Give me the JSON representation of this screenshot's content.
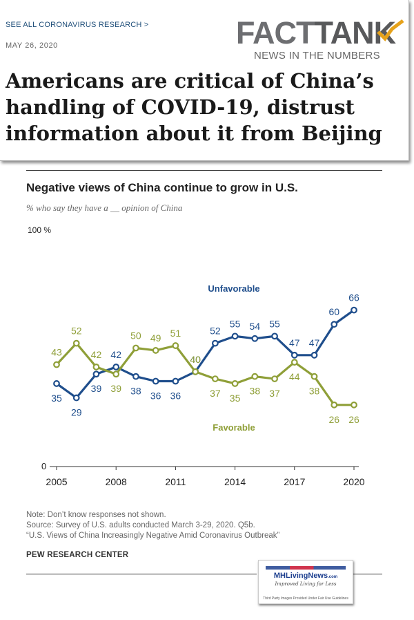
{
  "header": {
    "see_all_link": "SEE ALL CORONAVIRUS RESEARCH >",
    "date": "MAY 26, 2020",
    "logo_word_fact": "FACT",
    "logo_word_tank": "TANK",
    "logo_tagline": "NEWS IN THE NUMBERS",
    "logo_icon": "trend-up-icon",
    "headline": "Americans are critical of China’s handling of COVID-19, distrust information about it from Beijing"
  },
  "chart_data": {
    "type": "line",
    "title": "Negative views of China continue to grow in U.S.",
    "subtitle": "% who say they have a __ opinion of China",
    "y_top_label": "100 %",
    "y_bottom_label": "0",
    "ylim": [
      0,
      100
    ],
    "x": [
      2005,
      2006,
      2007,
      2008,
      2009,
      2010,
      2011,
      2012,
      2013,
      2014,
      2015,
      2016,
      2017,
      2018,
      2019,
      2020
    ],
    "x_tick_labels": [
      "2005",
      "2008",
      "2011",
      "2014",
      "2017",
      "2020"
    ],
    "x_ticks": [
      2005,
      2008,
      2011,
      2014,
      2017,
      2020
    ],
    "grid": false,
    "series": [
      {
        "name": "Unfavorable",
        "color": "#1f4e8c",
        "values": [
          35,
          29,
          39,
          42,
          38,
          36,
          36,
          40,
          52,
          55,
          54,
          55,
          47,
          47,
          60,
          66
        ],
        "labels": [
          "35",
          "29",
          "39",
          "42",
          "38",
          "36",
          "36",
          "40",
          "52",
          "55",
          "54",
          "55",
          "47",
          "47",
          "60",
          "66"
        ]
      },
      {
        "name": "Favorable",
        "color": "#8f9f38",
        "values": [
          43,
          52,
          42,
          39,
          50,
          49,
          51,
          40,
          37,
          35,
          38,
          37,
          44,
          38,
          26,
          26
        ],
        "labels": [
          "43",
          "52",
          "42",
          "39",
          "50",
          "49",
          "51",
          "40",
          "37",
          "35",
          "38",
          "37",
          "44",
          "38",
          "26",
          "26"
        ]
      }
    ]
  },
  "notes": {
    "line1": "Note: Don’t know responses not shown.",
    "line2": "Source: Survey of U.S. adults conducted March 3-29, 2020. Q5b.",
    "line3": "“U.S. Views of China Increasingly Negative Amid Coronavirus Outbreak”",
    "source_org": "PEW RESEARCH CENTER"
  },
  "badge": {
    "logo_text": "MHLivingNews",
    "logo_domain": ".com",
    "tagline": "Improved Living for Less",
    "disclaimer": "Third Party Images Provided Under Fair Use Guidelines"
  }
}
